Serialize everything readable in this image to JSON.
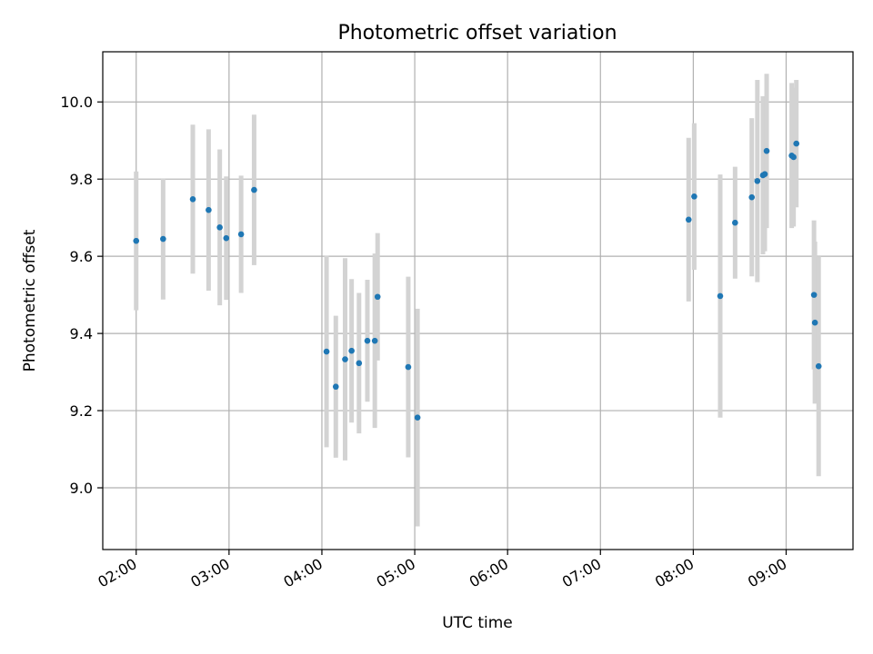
{
  "chart_data": {
    "type": "scatter",
    "title": "Photometric offset variation",
    "xlabel": "UTC time",
    "ylabel": "Photometric offset",
    "x_unit": "hours UTC",
    "xlim": [
      1.64,
      9.72
    ],
    "ylim": [
      8.84,
      10.13
    ],
    "x_ticks": [
      {
        "value": 2,
        "label": "02:00"
      },
      {
        "value": 3,
        "label": "03:00"
      },
      {
        "value": 4,
        "label": "04:00"
      },
      {
        "value": 5,
        "label": "05:00"
      },
      {
        "value": 6,
        "label": "06:00"
      },
      {
        "value": 7,
        "label": "07:00"
      },
      {
        "value": 8,
        "label": "08:00"
      },
      {
        "value": 9,
        "label": "09:00"
      }
    ],
    "y_ticks": [
      {
        "value": 9.0,
        "label": "9.0"
      },
      {
        "value": 9.2,
        "label": "9.2"
      },
      {
        "value": 9.4,
        "label": "9.4"
      },
      {
        "value": 9.6,
        "label": "9.6"
      },
      {
        "value": 9.8,
        "label": "9.8"
      },
      {
        "value": 10.0,
        "label": "10.0"
      }
    ],
    "grid": true,
    "legend": "none",
    "colors": {
      "point": "#1f77b4",
      "error_bar": "#d3d3d3",
      "grid": "#b0b0b0"
    },
    "series": [
      {
        "points": [
          {
            "x": 2.0,
            "y": 9.64,
            "yerr": 0.18
          },
          {
            "x": 2.29,
            "y": 9.645,
            "yerr": 0.157
          },
          {
            "x": 2.61,
            "y": 9.748,
            "yerr": 0.193
          },
          {
            "x": 2.78,
            "y": 9.72,
            "yerr": 0.209
          },
          {
            "x": 2.9,
            "y": 9.675,
            "yerr": 0.202
          },
          {
            "x": 2.97,
            "y": 9.647,
            "yerr": 0.16
          },
          {
            "x": 3.13,
            "y": 9.657,
            "yerr": 0.152
          },
          {
            "x": 3.27,
            "y": 9.772,
            "yerr": 0.195
          },
          {
            "x": 4.05,
            "y": 9.353,
            "yerr": 0.248
          },
          {
            "x": 4.15,
            "y": 9.262,
            "yerr": 0.184
          },
          {
            "x": 4.25,
            "y": 9.333,
            "yerr": 0.262
          },
          {
            "x": 4.32,
            "y": 9.355,
            "yerr": 0.186
          },
          {
            "x": 4.4,
            "y": 9.323,
            "yerr": 0.182
          },
          {
            "x": 4.49,
            "y": 9.381,
            "yerr": 0.158
          },
          {
            "x": 4.57,
            "y": 9.381,
            "yerr": 0.226
          },
          {
            "x": 4.6,
            "y": 9.495,
            "yerr": 0.165
          },
          {
            "x": 4.93,
            "y": 9.313,
            "yerr": 0.234
          },
          {
            "x": 5.03,
            "y": 9.182,
            "yerr": 0.282
          },
          {
            "x": 7.95,
            "y": 9.695,
            "yerr": 0.212
          },
          {
            "x": 8.01,
            "y": 9.755,
            "yerr": 0.19
          },
          {
            "x": 8.29,
            "y": 9.497,
            "yerr": 0.315
          },
          {
            "x": 8.45,
            "y": 9.687,
            "yerr": 0.145
          },
          {
            "x": 8.63,
            "y": 9.753,
            "yerr": 0.205
          },
          {
            "x": 8.69,
            "y": 9.795,
            "yerr": 0.262
          },
          {
            "x": 8.75,
            "y": 9.81,
            "yerr": 0.205
          },
          {
            "x": 8.77,
            "y": 9.813,
            "yerr": 0.2
          },
          {
            "x": 8.79,
            "y": 9.873,
            "yerr": 0.2
          },
          {
            "x": 9.06,
            "y": 9.861,
            "yerr": 0.188
          },
          {
            "x": 9.08,
            "y": 9.857,
            "yerr": 0.18
          },
          {
            "x": 9.11,
            "y": 9.892,
            "yerr": 0.165
          },
          {
            "x": 9.3,
            "y": 9.5,
            "yerr": 0.193
          },
          {
            "x": 9.31,
            "y": 9.428,
            "yerr": 0.21
          },
          {
            "x": 9.35,
            "y": 9.315,
            "yerr": 0.285
          }
        ]
      }
    ]
  }
}
